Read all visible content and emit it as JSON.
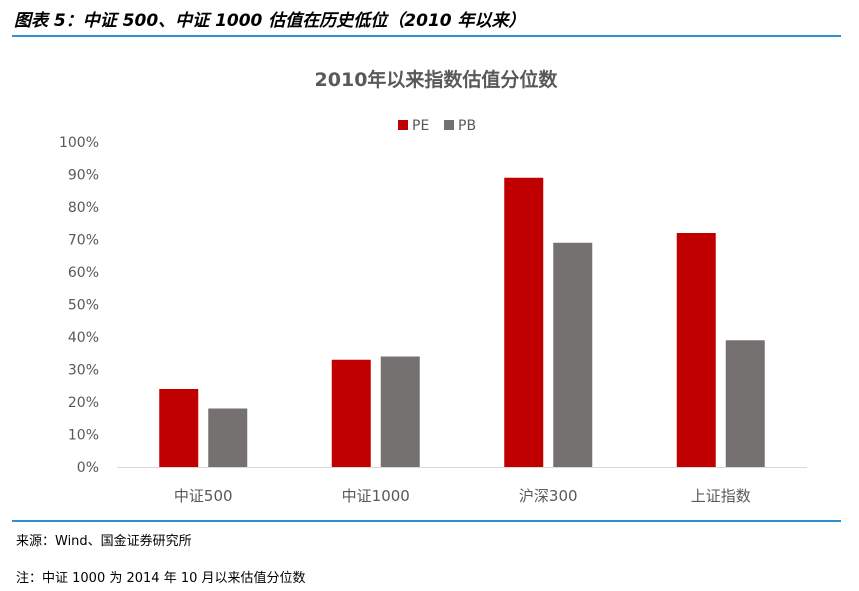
{
  "figure_title": "图表 5：中证 500、中证 1000 估值在历史低位（2010 年以来）",
  "source": "来源：Wind、国金证券研究所",
  "note": "注：中证 1000 为 2014 年 10 月以来估值分位数",
  "colors": {
    "PE": "#c00000",
    "PB": "#767171",
    "rule": "#2e8fd6",
    "axis": "#d9d9d9"
  },
  "chart_data": {
    "type": "bar",
    "title": "2010年以来指数估值分位数",
    "categories": [
      "中证500",
      "中证1000",
      "沪深300",
      "上证指数"
    ],
    "series": [
      {
        "name": "PE",
        "values": [
          24,
          33,
          89,
          72
        ]
      },
      {
        "name": "PB",
        "values": [
          18,
          34,
          69,
          39
        ]
      }
    ],
    "y_ticks": [
      "0%",
      "10%",
      "20%",
      "30%",
      "40%",
      "50%",
      "60%",
      "70%",
      "80%",
      "90%",
      "100%"
    ],
    "ylim": [
      0,
      100
    ],
    "legend_position": "top",
    "grid": false
  }
}
